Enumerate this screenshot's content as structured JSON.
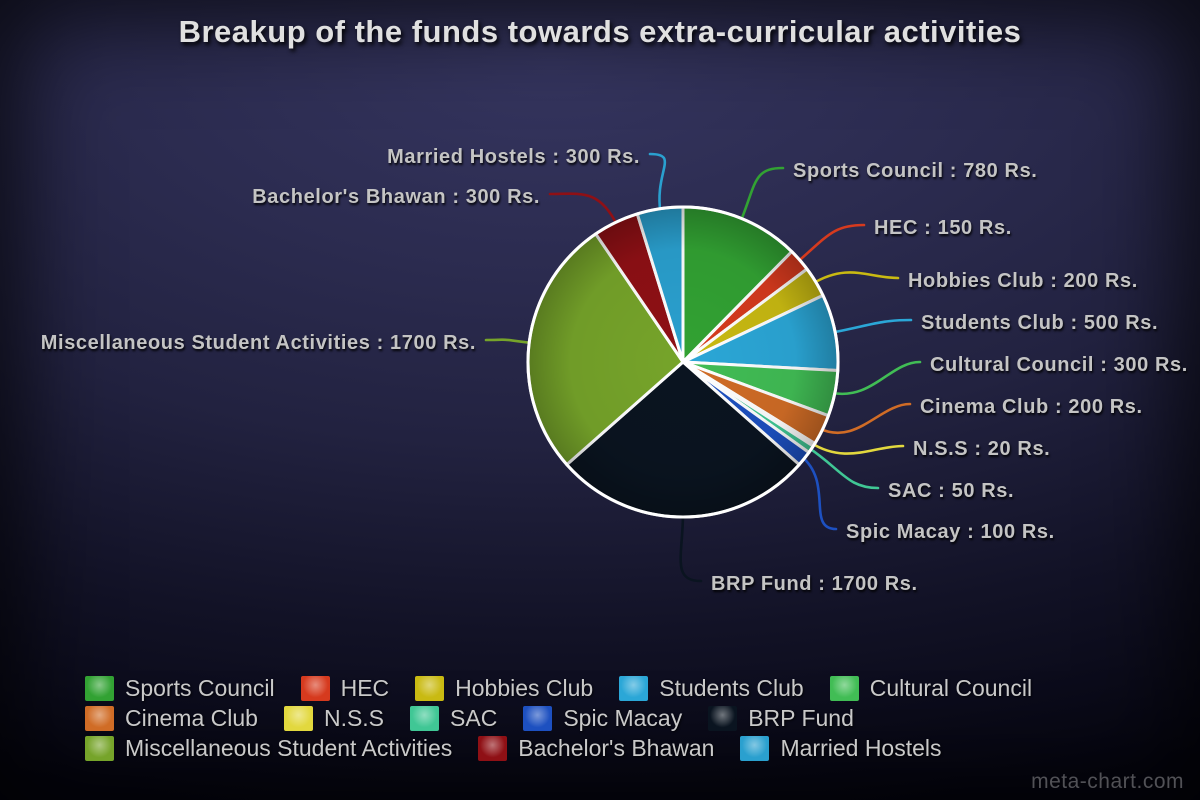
{
  "title": "Breakup of the funds towards extra-curricular activities",
  "watermark": "meta-chart.com",
  "chart_data": {
    "type": "pie",
    "title": "Breakup of the funds towards extra-curricular activities",
    "unit": "Rs.",
    "total": 6300,
    "direction": "clockwise",
    "start_angle_deg": 0,
    "legend_position": "bottom",
    "slices": [
      {
        "label": "Sports Council",
        "value": 780,
        "color": "#32a233",
        "callout": "Sports Council : 780 Rs."
      },
      {
        "label": "HEC",
        "value": 150,
        "color": "#d63a1e",
        "callout": "HEC : 150 Rs."
      },
      {
        "label": "Hobbies Club",
        "value": 200,
        "color": "#c9ba12",
        "callout": "Hobbies Club : 200 Rs."
      },
      {
        "label": "Students Club",
        "value": 500,
        "color": "#2ba7d7",
        "callout": "Students Club : 500 Rs."
      },
      {
        "label": "Cultural Council",
        "value": 300,
        "color": "#41bd55",
        "callout": "Cultural Council : 300 Rs."
      },
      {
        "label": "Cinema Club",
        "value": 200,
        "color": "#d06c26",
        "callout": "Cinema Club : 200 Rs."
      },
      {
        "label": "N.S.S",
        "value": 20,
        "color": "#e2d83e",
        "callout": "N.S.S : 20 Rs."
      },
      {
        "label": "SAC",
        "value": 50,
        "color": "#40c795",
        "callout": "SAC : 50 Rs."
      },
      {
        "label": "Spic Macay",
        "value": 100,
        "color": "#1d50c0",
        "callout": "Spic Macay : 100 Rs."
      },
      {
        "label": "BRP Fund",
        "value": 1700,
        "color": "#0a1420",
        "callout": "BRP Fund : 1700 Rs."
      },
      {
        "label": "Miscellaneous Student Activities",
        "value": 1700,
        "color": "#76a42a",
        "callout": "Miscellaneous Student Activities : 1700 Rs."
      },
      {
        "label": "Bachelor's Bhawan",
        "value": 300,
        "color": "#8f1015",
        "callout": "Bachelor's Bhawan : 300 Rs."
      },
      {
        "label": "Married Hostels",
        "value": 300,
        "color": "#2aa0cf",
        "callout": "Married Hostels : 300 Rs."
      }
    ]
  }
}
